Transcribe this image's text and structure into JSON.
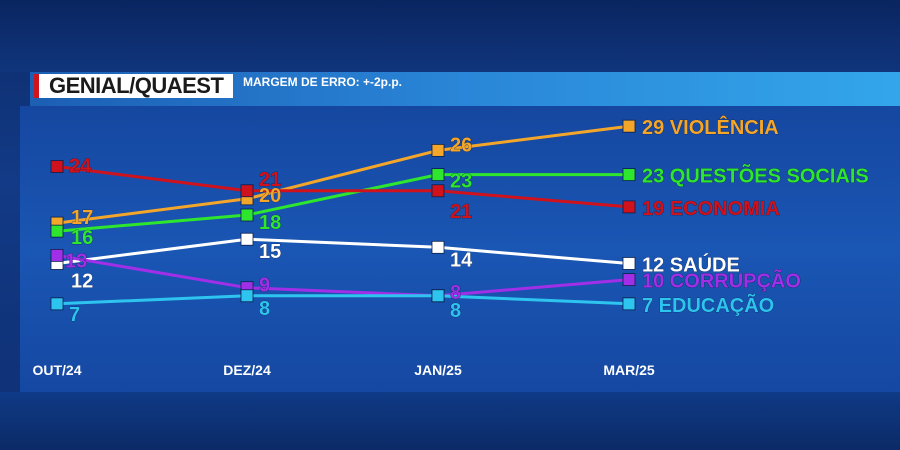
{
  "header": {
    "source": "GENIAL/QUAEST",
    "margin": "MARGEM DE ERRO: +-2p.p."
  },
  "chart_data": {
    "type": "line",
    "categories": [
      "OUT/24",
      "DEZ/24",
      "JAN/25",
      "MAR/25"
    ],
    "ylim": [
      5,
      31
    ],
    "grid": false,
    "series": [
      {
        "name": "VIOLÊNCIA",
        "color": "#f4a62a",
        "values": [
          17,
          20,
          26,
          29
        ]
      },
      {
        "name": "QUESTÕES SOCIAIS",
        "color": "#2ee62e",
        "values": [
          16,
          18,
          23,
          23
        ]
      },
      {
        "name": "ECONOMIA",
        "color": "#d0121c",
        "values": [
          24,
          21,
          21,
          19
        ]
      },
      {
        "name": "SAÚDE",
        "color": "#ffffff",
        "values": [
          12,
          15,
          14,
          12
        ]
      },
      {
        "name": "CORRUPÇÃO",
        "color": "#a12fe8",
        "values": [
          13,
          9,
          8,
          10
        ]
      },
      {
        "name": "EDUCAÇÃO",
        "color": "#2ec4f0",
        "values": [
          7,
          8,
          8,
          7
        ]
      }
    ]
  }
}
